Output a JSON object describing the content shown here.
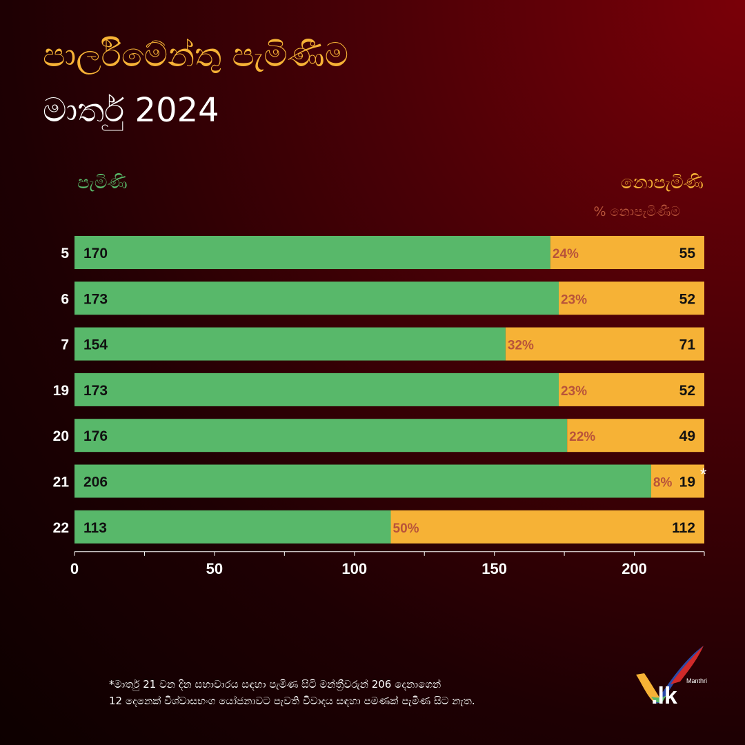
{
  "header": {
    "title_line1": "පාර්ලිමේන්තු පැමිණීම",
    "title_line2": "මාර්තු 2024"
  },
  "legend": {
    "present": "පැමිණි",
    "absent": "නොපැමිණි",
    "absent_pct": "% නොපැමිණීම"
  },
  "colors": {
    "present": "#58b86a",
    "absent": "#f6b236",
    "pct_text": "#b8533a",
    "title": "#f6b236"
  },
  "chart_data": {
    "type": "bar",
    "orientation": "horizontal",
    "stacked": true,
    "categories": [
      "5",
      "6",
      "7",
      "19",
      "20",
      "21",
      "22"
    ],
    "series": [
      {
        "name": "පැමිණි",
        "values": [
          170,
          173,
          154,
          173,
          176,
          206,
          113
        ]
      },
      {
        "name": "නොපැමිණි",
        "values": [
          55,
          52,
          71,
          52,
          49,
          19,
          112
        ]
      }
    ],
    "absent_pct_labels": [
      "24%",
      "23%",
      "32%",
      "23%",
      "22%",
      "8%",
      "50%"
    ],
    "xlim": [
      0,
      225
    ],
    "xticks": [
      0,
      50,
      100,
      150,
      200
    ],
    "marker": {
      "category": "21",
      "symbol": "*"
    },
    "grid": false
  },
  "footnote": {
    "line1": "*මාර්තු 21 වන දින සභාවාරය සඳහා පැමිණ සිටි මන්ත්‍රීවරුන් 206 දෙනාගෙන්",
    "line2": "12 දෙනෙක් විශ්වාසභංග යෝජනාවට පැවති විවාදය සඳහා පමණක් පැමිණ සිට නැත."
  },
  "logo": {
    "brand": ".lk",
    "small": "Manthri"
  }
}
